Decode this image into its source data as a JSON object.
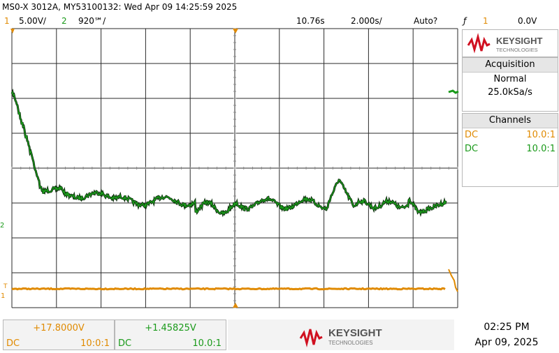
{
  "header": {
    "title": "MS0-X 3012A, MY53100132: Wed Apr 09 14:25:59 2025"
  },
  "settings": {
    "ch1_num": "1",
    "ch1_scale": "5.00V/",
    "ch2_num": "2",
    "ch2_scale": "920℠/",
    "delay": "10.76s",
    "timebase": "2.000s/",
    "trigger_mode": "Auto?",
    "trigger_icon": "ƒ",
    "trigger_source": "1",
    "trigger_level": "0.0V"
  },
  "brand": {
    "name": "KEYSIGHT",
    "sub": "TECHNOLOGIES"
  },
  "acquisition": {
    "title": "Acquisition",
    "mode": "Normal",
    "rate": "25.0kSa/s"
  },
  "channels": {
    "title": "Channels",
    "rows": [
      {
        "coupling": "DC",
        "probe": "10.0:1",
        "color": "#e08a00"
      },
      {
        "coupling": "DC",
        "probe": "10.0:1",
        "color": "#1a9a1a"
      }
    ]
  },
  "markers": {
    "ch2": "2",
    "ch1": "1",
    "trig": "T"
  },
  "measurements": [
    {
      "value": "+17.8000V",
      "coupling": "DC",
      "probe": "10:0:1",
      "color": "#e08a00"
    },
    {
      "value": "+1.45825V",
      "coupling": "DC",
      "probe": "10.0:1",
      "color": "#1a9a1a"
    }
  ],
  "clock": {
    "time": "02:25 PM",
    "date": "Apr 09, 2025"
  },
  "colors": {
    "ch1": "#e08a00",
    "ch2": "#1a9a1a",
    "grid": "#2a2a2a",
    "dots": "#8a8a8a"
  }
}
